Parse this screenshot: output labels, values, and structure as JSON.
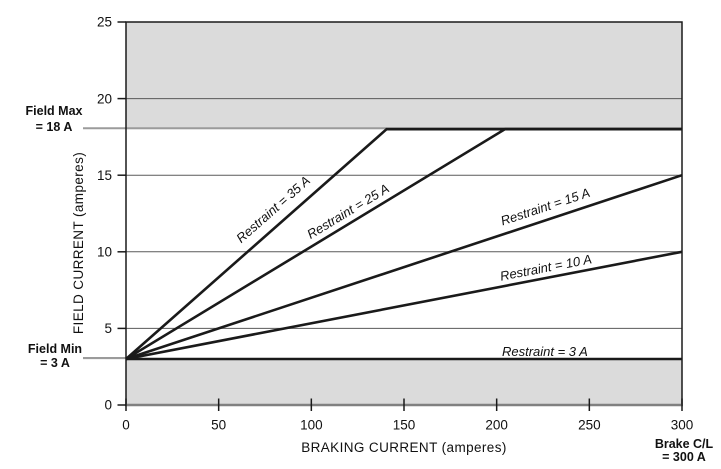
{
  "colors": {
    "band": "#dbdbdb",
    "series_line": "#1a1a1a",
    "grid": "#5a5a5a",
    "connector": "#9b9b9b",
    "bottom_axis": "#808080",
    "border": "#1a1a1a",
    "text": "#111111"
  },
  "chart_data": {
    "type": "line",
    "title": "",
    "xlabel": "BRAKING CURRENT  (amperes)",
    "ylabel": "FIELD CURRENT  (amperes)",
    "xlim": [
      0,
      300
    ],
    "ylim": [
      0,
      25
    ],
    "x_ticks": [
      0,
      50,
      100,
      150,
      200,
      250,
      300
    ],
    "y_ticks": [
      0,
      5,
      10,
      15,
      20,
      25
    ],
    "gridlines_y": [
      5,
      10,
      15,
      20
    ],
    "grid": "horizontal-only",
    "legend_position": "labels-on-lines",
    "field_max_amperes": 18,
    "field_min_amperes": 3,
    "brake_current_limit_amperes": 300,
    "bands": [
      {
        "name": "field-max-exclusion-band",
        "y0": 18,
        "y1": 25
      },
      {
        "name": "field-min-exclusion-band",
        "y0": 0,
        "y1": 3
      }
    ],
    "series": [
      {
        "name": "restraint-35",
        "label": "Restraint = 35 A",
        "restraint_a": 35,
        "points": [
          [
            0,
            3
          ],
          [
            140.6,
            18
          ],
          [
            300,
            18
          ]
        ],
        "label_x": 81,
        "label_dy": -14
      },
      {
        "name": "restraint-25",
        "label": "Restraint = 25 A",
        "restraint_a": 25,
        "points": [
          [
            0,
            3
          ],
          [
            204.5,
            18
          ],
          [
            300,
            18
          ]
        ],
        "label_x": 121,
        "label_dy": -8
      },
      {
        "name": "restraint-15",
        "label": "Restraint = 15 A",
        "restraint_a": 15,
        "points": [
          [
            0,
            3
          ],
          [
            300,
            15
          ]
        ],
        "label_x": 227,
        "label_dy": -9
      },
      {
        "name": "restraint-10",
        "label": "Restraint = 10 A",
        "restraint_a": 10,
        "points": [
          [
            0,
            3
          ],
          [
            300,
            10
          ]
        ],
        "label_x": 227,
        "label_dy": -6
      },
      {
        "name": "restraint-3",
        "label": "Restraint = 3 A",
        "restraint_a": 3,
        "points": [
          [
            0,
            3
          ],
          [
            300,
            3
          ]
        ],
        "label_x": 226,
        "label_dy": -3
      }
    ],
    "annotations": {
      "field_max": {
        "line1": "Field Max",
        "line2": "= 18 A",
        "y": 18,
        "edge_full_width": true
      },
      "field_min": {
        "line1": "Field Min",
        "line2": "= 3 A",
        "y": 3,
        "edge_full_width": false
      },
      "brake_cl": {
        "line1": "Brake C/L",
        "line2": "= 300 A",
        "x": 300
      }
    }
  }
}
